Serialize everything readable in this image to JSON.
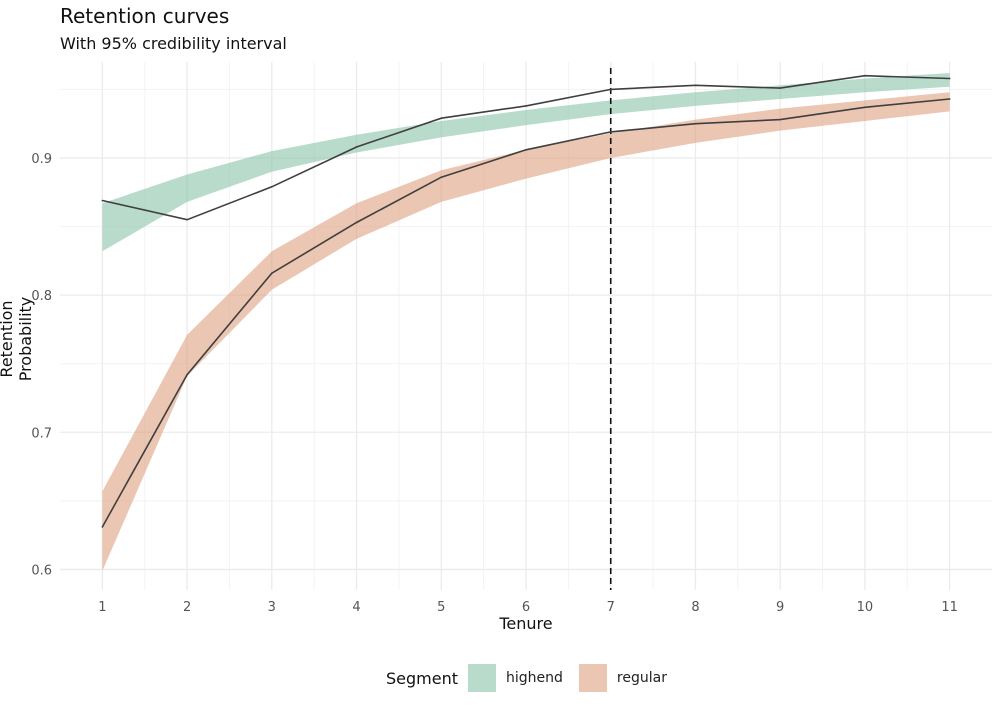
{
  "chart_data": {
    "type": "line",
    "title": "Retention curves",
    "subtitle": "With 95% credibility interval",
    "xlabel": "Tenure",
    "ylabel": "Retention Probability",
    "x": [
      1,
      2,
      3,
      4,
      5,
      6,
      7,
      8,
      9,
      10,
      11
    ],
    "xlim": [
      0.5,
      11.5
    ],
    "ylim": [
      0.585,
      0.97
    ],
    "y_ticks": [
      0.6,
      0.7,
      0.8,
      0.9
    ],
    "y_tick_labels": [
      "0.6",
      "0.7",
      "0.8",
      "0.9"
    ],
    "x_tick_labels": [
      "1",
      "2",
      "3",
      "4",
      "5",
      "6",
      "7",
      "8",
      "9",
      "10",
      "11"
    ],
    "grid": true,
    "vline": {
      "x": 7,
      "style": "dashed"
    },
    "legend": {
      "title": "Segment",
      "position": "bottom"
    },
    "series": [
      {
        "name": "highend",
        "color": "#8ec5ad",
        "values": [
          0.869,
          0.855,
          0.879,
          0.908,
          0.929,
          0.938,
          0.95,
          0.953,
          0.951,
          0.96,
          0.958
        ],
        "lower": [
          0.832,
          0.868,
          0.89,
          0.904,
          0.915,
          0.924,
          0.932,
          0.938,
          0.943,
          0.948,
          0.952
        ],
        "upper": [
          0.867,
          0.888,
          0.905,
          0.917,
          0.927,
          0.935,
          0.942,
          0.948,
          0.953,
          0.958,
          0.962
        ]
      },
      {
        "name": "regular",
        "color": "#dea383",
        "values": [
          0.631,
          0.742,
          0.816,
          0.853,
          0.886,
          0.906,
          0.919,
          0.925,
          0.928,
          0.937,
          0.943
        ],
        "lower": [
          0.599,
          0.741,
          0.804,
          0.841,
          0.868,
          0.885,
          0.9,
          0.911,
          0.92,
          0.927,
          0.934
        ],
        "upper": [
          0.657,
          0.771,
          0.832,
          0.867,
          0.891,
          0.906,
          0.918,
          0.928,
          0.936,
          0.942,
          0.948
        ]
      }
    ]
  }
}
